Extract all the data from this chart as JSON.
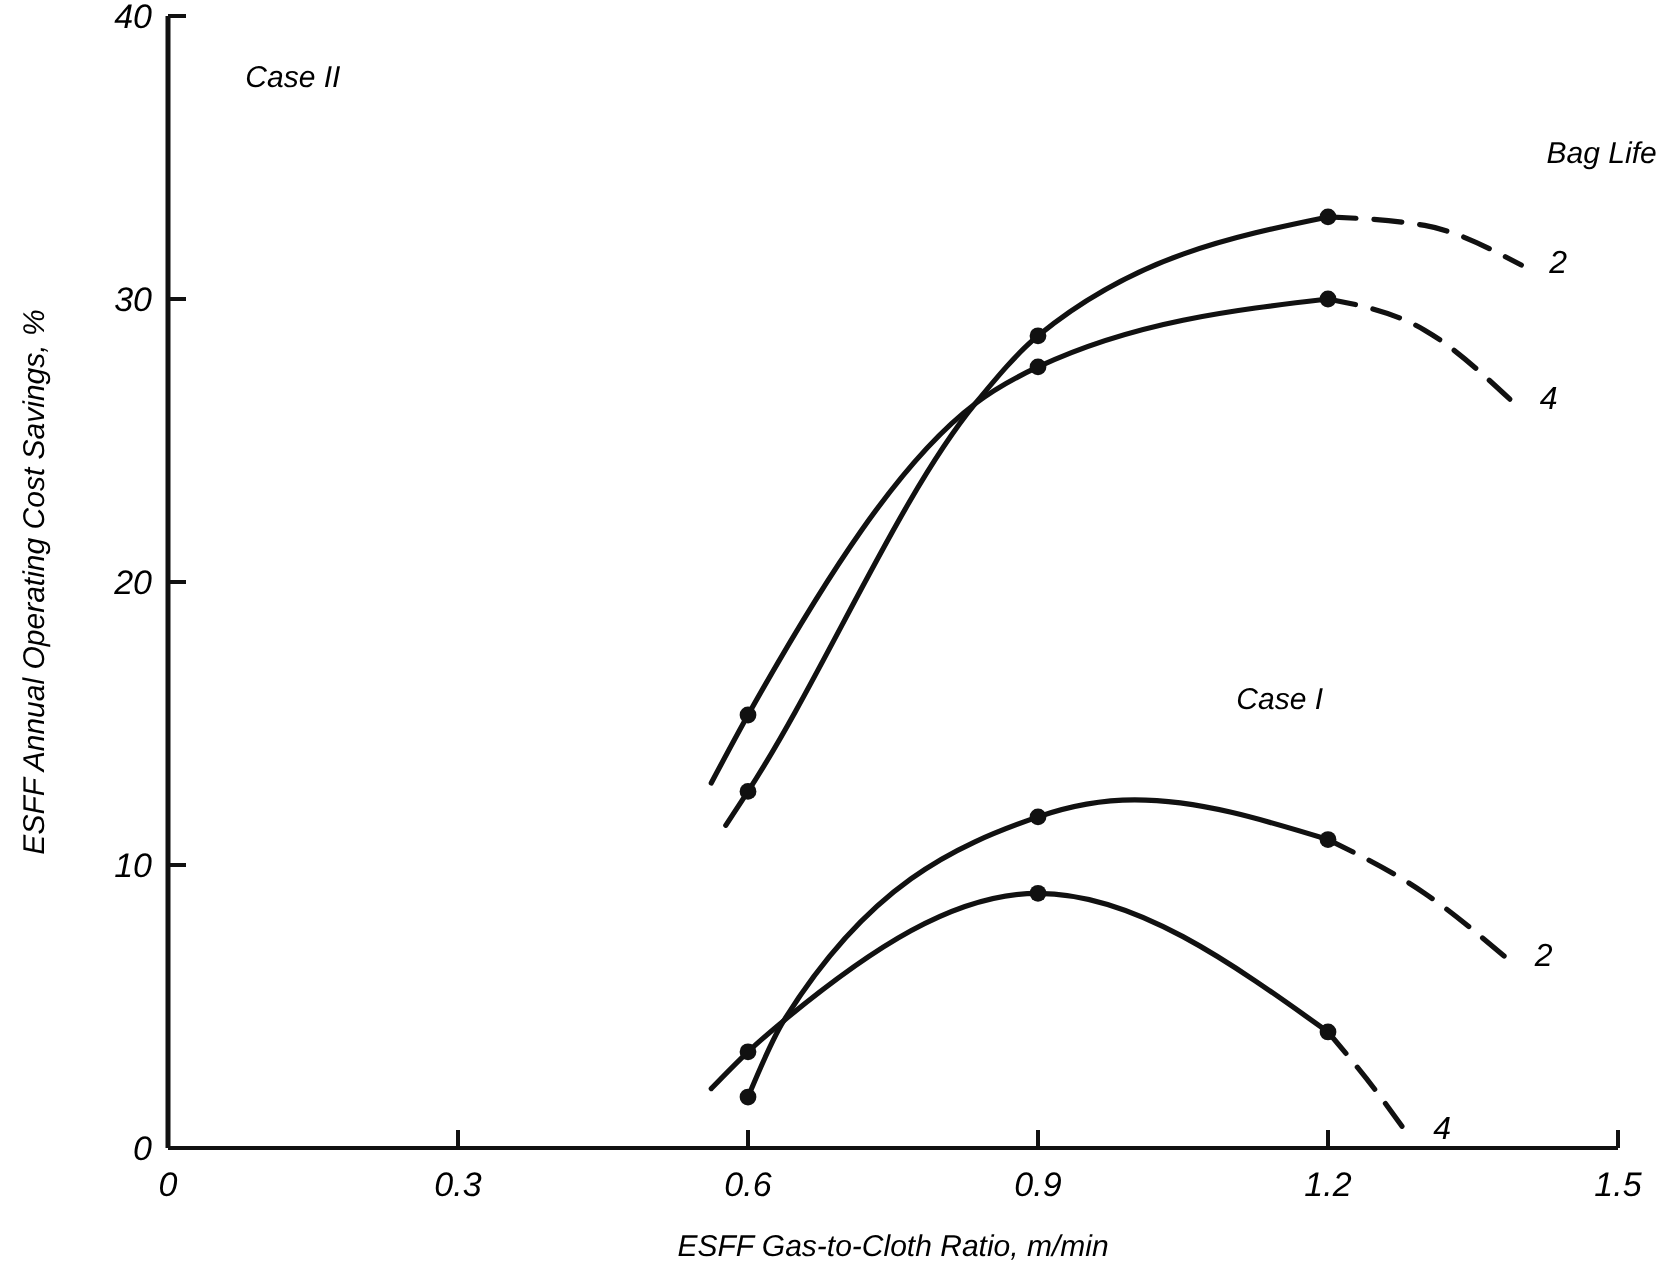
{
  "chart_data": {
    "type": "line",
    "xlabel": "ESFF Gas-to-Cloth Ratio, m/min",
    "ylabel": "ESFF Annual Operating Cost Savings, %",
    "xlim": [
      0,
      1.5
    ],
    "ylim": [
      0,
      40
    ],
    "xticks": [
      0,
      0.3,
      0.6,
      0.9,
      1.2,
      1.5
    ],
    "yticks": [
      0,
      10,
      20,
      30,
      40
    ],
    "annotations": [
      "Case II",
      "Case I",
      "Bag Life"
    ],
    "series": [
      {
        "color": "#111111",
        "line_style": "solid",
        "marker": "none",
        "x": [
          0.577,
          0.6,
          0.835,
          0.9,
          1.2
        ],
        "values": [
          11.4,
          12.6,
          26.3,
          28.7,
          32.9
        ]
      },
      {
        "type": "scatter",
        "color": "#111111",
        "marker": "circle",
        "x": [
          0.6,
          0.9,
          1.2
        ],
        "values": [
          12.6,
          28.7,
          32.9
        ]
      },
      {
        "name": "2",
        "color": "#111111",
        "line_style": "dashed",
        "marker": "none",
        "x": [
          1.2,
          1.3,
          1.4
        ],
        "values": [
          32.9,
          32.6,
          31.2
        ]
      },
      {
        "color": "#111111",
        "line_style": "solid",
        "marker": "none",
        "x": [
          0.562,
          0.6,
          0.835,
          0.9,
          1.2
        ],
        "values": [
          12.9,
          15.3,
          26.3,
          27.6,
          30.0
        ]
      },
      {
        "type": "scatter",
        "color": "#111111",
        "marker": "circle",
        "x": [
          0.6,
          0.9,
          1.2
        ],
        "values": [
          15.3,
          27.6,
          30.0
        ]
      },
      {
        "name": "4",
        "color": "#111111",
        "line_style": "dashed",
        "marker": "none",
        "x": [
          1.2,
          1.3,
          1.39
        ],
        "values": [
          30.0,
          28.9,
          26.4
        ]
      },
      {
        "color": "#111111",
        "line_style": "solid",
        "marker": "none",
        "x": [
          0.6,
          0.637,
          0.9,
          1.0,
          1.2
        ],
        "values": [
          1.8,
          4.5,
          11.7,
          12.3,
          10.9
        ]
      },
      {
        "type": "scatter",
        "color": "#111111",
        "marker": "circle",
        "x": [
          0.6,
          0.9,
          1.2
        ],
        "values": [
          1.8,
          11.7,
          10.9
        ]
      },
      {
        "name": "2",
        "color": "#111111",
        "line_style": "dashed",
        "marker": "none",
        "x": [
          1.2,
          1.3,
          1.385
        ],
        "values": [
          10.9,
          9.0,
          6.7
        ]
      },
      {
        "color": "#111111",
        "line_style": "solid",
        "marker": "none",
        "x": [
          0.562,
          0.6,
          0.637,
          0.9,
          1.2
        ],
        "values": [
          2.1,
          3.4,
          4.5,
          9.0,
          4.1
        ]
      },
      {
        "type": "scatter",
        "color": "#111111",
        "marker": "circle",
        "x": [
          0.6,
          0.9,
          1.2
        ],
        "values": [
          3.4,
          9.0,
          4.1
        ]
      },
      {
        "name": "4",
        "color": "#111111",
        "line_style": "dashed",
        "marker": "none",
        "x": [
          1.2,
          1.25,
          1.28
        ],
        "values": [
          4.1,
          2.0,
          0.6
        ]
      }
    ]
  }
}
